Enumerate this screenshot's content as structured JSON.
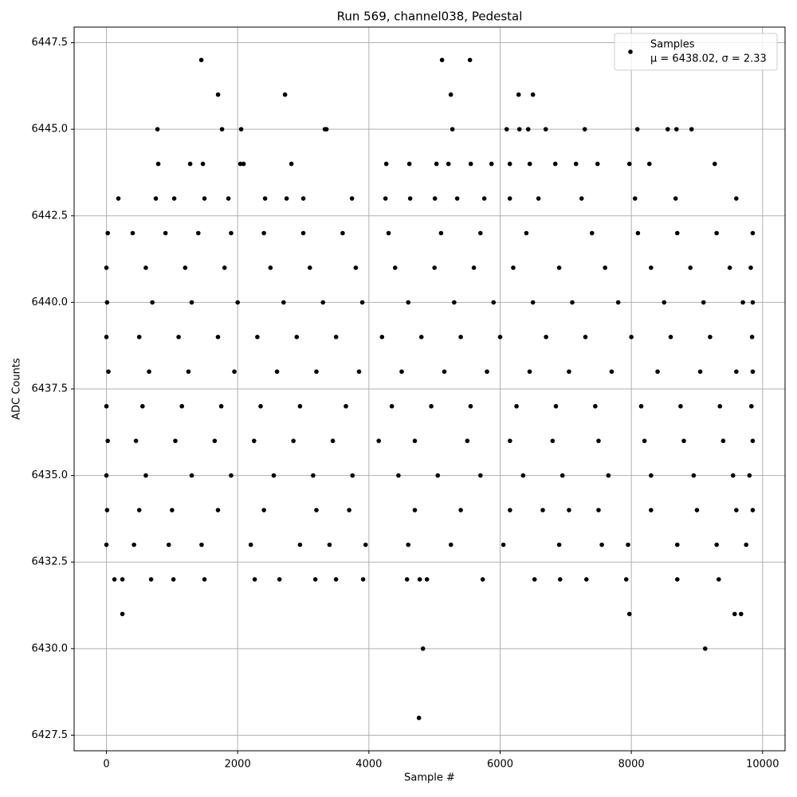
{
  "chart_data": {
    "type": "scatter",
    "title": "Run 569, channel038, Pedestal",
    "xlabel": "Sample #",
    "ylabel": "ADC Counts",
    "xlim": [
      -492.5,
      10342.5
    ],
    "ylim": [
      6427.05,
      6447.95
    ],
    "xticks": [
      0,
      2000,
      4000,
      6000,
      8000,
      10000
    ],
    "yticks": [
      6427.5,
      {
        "value": 6430,
        "label": "6430.0"
      },
      6432.5,
      {
        "value": 6435,
        "label": "6435.0"
      },
      6437.5,
      {
        "value": 6440,
        "label": "6440.0"
      },
      6442.5,
      {
        "value": 6445,
        "label": "6445.0"
      },
      6447.5
    ],
    "grid": true,
    "legend": "upper right",
    "legend_note": "μ = 6438.02, σ = 2.33",
    "series": [
      {
        "name": "Samples",
        "color": "#000000",
        "x": [
          1446,
          5115,
          5540,
          1701,
          2722,
          5249,
          6282,
          6500,
          778,
          1762,
          2053,
          3329,
          3353,
          5273,
          6100,
          6294,
          6428,
          6695,
          7290,
          8092,
          8554,
          8688,
          8918,
          790,
          1276,
          1470,
          2041,
          2090,
          2819,
          4265,
          4617,
          5030,
          5213,
          5553,
          5869,
          6148,
          6452,
          6841,
          7157,
          7485,
          7971,
          8275,
          9271,
          182,
          753,
          1033,
          1494,
          1859,
          2418,
          2746,
          3001,
          3742,
          4253,
          4629,
          5006,
          5346,
          5759,
          6148,
          6585,
          7242,
          8056,
          8675,
          9599,
          20,
          400,
          900,
          1400,
          1900,
          2400,
          3000,
          3600,
          4300,
          5100,
          5700,
          6400,
          7400,
          8100,
          8700,
          9300,
          9850,
          0,
          600,
          1200,
          1800,
          2500,
          3100,
          3800,
          4400,
          5000,
          5600,
          6200,
          6900,
          7600,
          8300,
          8900,
          9500,
          9820,
          10,
          700,
          1300,
          2000,
          2700,
          3300,
          3900,
          4600,
          5300,
          5900,
          6500,
          7100,
          7800,
          8500,
          9100,
          9700,
          9850,
          0,
          500,
          1100,
          1700,
          2300,
          2900,
          3500,
          4200,
          4800,
          5400,
          6000,
          6700,
          7300,
          8000,
          8600,
          9200,
          9840,
          30,
          650,
          1250,
          1950,
          2600,
          3200,
          3850,
          4500,
          5150,
          5800,
          6450,
          7050,
          7700,
          8400,
          9050,
          9600,
          9850,
          0,
          550,
          1150,
          1750,
          2350,
          2950,
          3650,
          4350,
          4950,
          5550,
          6250,
          6850,
          7450,
          8150,
          8750,
          9350,
          9830,
          20,
          450,
          1050,
          1650,
          2250,
          2850,
          3450,
          4150,
          4700,
          5500,
          6150,
          6800,
          7500,
          8200,
          8800,
          9400,
          9850,
          0,
          600,
          1300,
          1900,
          2550,
          3150,
          3750,
          4450,
          5050,
          5700,
          6350,
          6950,
          7650,
          8300,
          8950,
          9550,
          9800,
          10,
          500,
          1000,
          1700,
          2400,
          3200,
          3700,
          4700,
          5400,
          6150,
          6650,
          7050,
          7500,
          8300,
          9000,
          9600,
          9850,
          0,
          420,
          950,
          1450,
          2200,
          2950,
          3400,
          3950,
          4600,
          5250,
          6050,
          6900,
          7550,
          7950,
          8700,
          9300,
          9750,
          122,
          243,
          681,
          1021,
          1494,
          2260,
          2637,
          3184,
          3499,
          3912,
          4581,
          4775,
          4885,
          5735,
          6525,
          6914,
          7315,
          7922,
          8700,
          9332,
          243,
          7971,
          9575,
          9672,
          4824,
          9125,
          4763
        ],
        "y": [
          6447,
          6447,
          6447,
          6446,
          6446,
          6446,
          6446,
          6446,
          6445,
          6445,
          6445,
          6445,
          6445,
          6445,
          6445,
          6445,
          6445,
          6445,
          6445,
          6445,
          6445,
          6445,
          6445,
          6444,
          6444,
          6444,
          6444,
          6444,
          6444,
          6444,
          6444,
          6444,
          6444,
          6444,
          6444,
          6444,
          6444,
          6444,
          6444,
          6444,
          6444,
          6444,
          6444,
          6443,
          6443,
          6443,
          6443,
          6443,
          6443,
          6443,
          6443,
          6443,
          6443,
          6443,
          6443,
          6443,
          6443,
          6443,
          6443,
          6443,
          6443,
          6443,
          6443,
          6442,
          6442,
          6442,
          6442,
          6442,
          6442,
          6442,
          6442,
          6442,
          6442,
          6442,
          6442,
          6442,
          6442,
          6442,
          6442,
          6442,
          6441,
          6441,
          6441,
          6441,
          6441,
          6441,
          6441,
          6441,
          6441,
          6441,
          6441,
          6441,
          6441,
          6441,
          6441,
          6441,
          6441,
          6440,
          6440,
          6440,
          6440,
          6440,
          6440,
          6440,
          6440,
          6440,
          6440,
          6440,
          6440,
          6440,
          6440,
          6440,
          6440,
          6440,
          6439,
          6439,
          6439,
          6439,
          6439,
          6439,
          6439,
          6439,
          6439,
          6439,
          6439,
          6439,
          6439,
          6439,
          6439,
          6439,
          6439,
          6438,
          6438,
          6438,
          6438,
          6438,
          6438,
          6438,
          6438,
          6438,
          6438,
          6438,
          6438,
          6438,
          6438,
          6438,
          6438,
          6438,
          6437,
          6437,
          6437,
          6437,
          6437,
          6437,
          6437,
          6437,
          6437,
          6437,
          6437,
          6437,
          6437,
          6437,
          6437,
          6437,
          6437,
          6436,
          6436,
          6436,
          6436,
          6436,
          6436,
          6436,
          6436,
          6436,
          6436,
          6436,
          6436,
          6436,
          6436,
          6436,
          6436,
          6436,
          6435,
          6435,
          6435,
          6435,
          6435,
          6435,
          6435,
          6435,
          6435,
          6435,
          6435,
          6435,
          6435,
          6435,
          6435,
          6435,
          6435,
          6434,
          6434,
          6434,
          6434,
          6434,
          6434,
          6434,
          6434,
          6434,
          6434,
          6434,
          6434,
          6434,
          6434,
          6434,
          6434,
          6434,
          6433,
          6433,
          6433,
          6433,
          6433,
          6433,
          6433,
          6433,
          6433,
          6433,
          6433,
          6433,
          6433,
          6433,
          6433,
          6433,
          6433,
          6432,
          6432,
          6432,
          6432,
          6432,
          6432,
          6432,
          6432,
          6432,
          6432,
          6432,
          6432,
          6432,
          6432,
          6432,
          6432,
          6432,
          6432,
          6432,
          6432,
          6431,
          6431,
          6431,
          6431,
          6430,
          6430,
          6428
        ]
      }
    ]
  }
}
